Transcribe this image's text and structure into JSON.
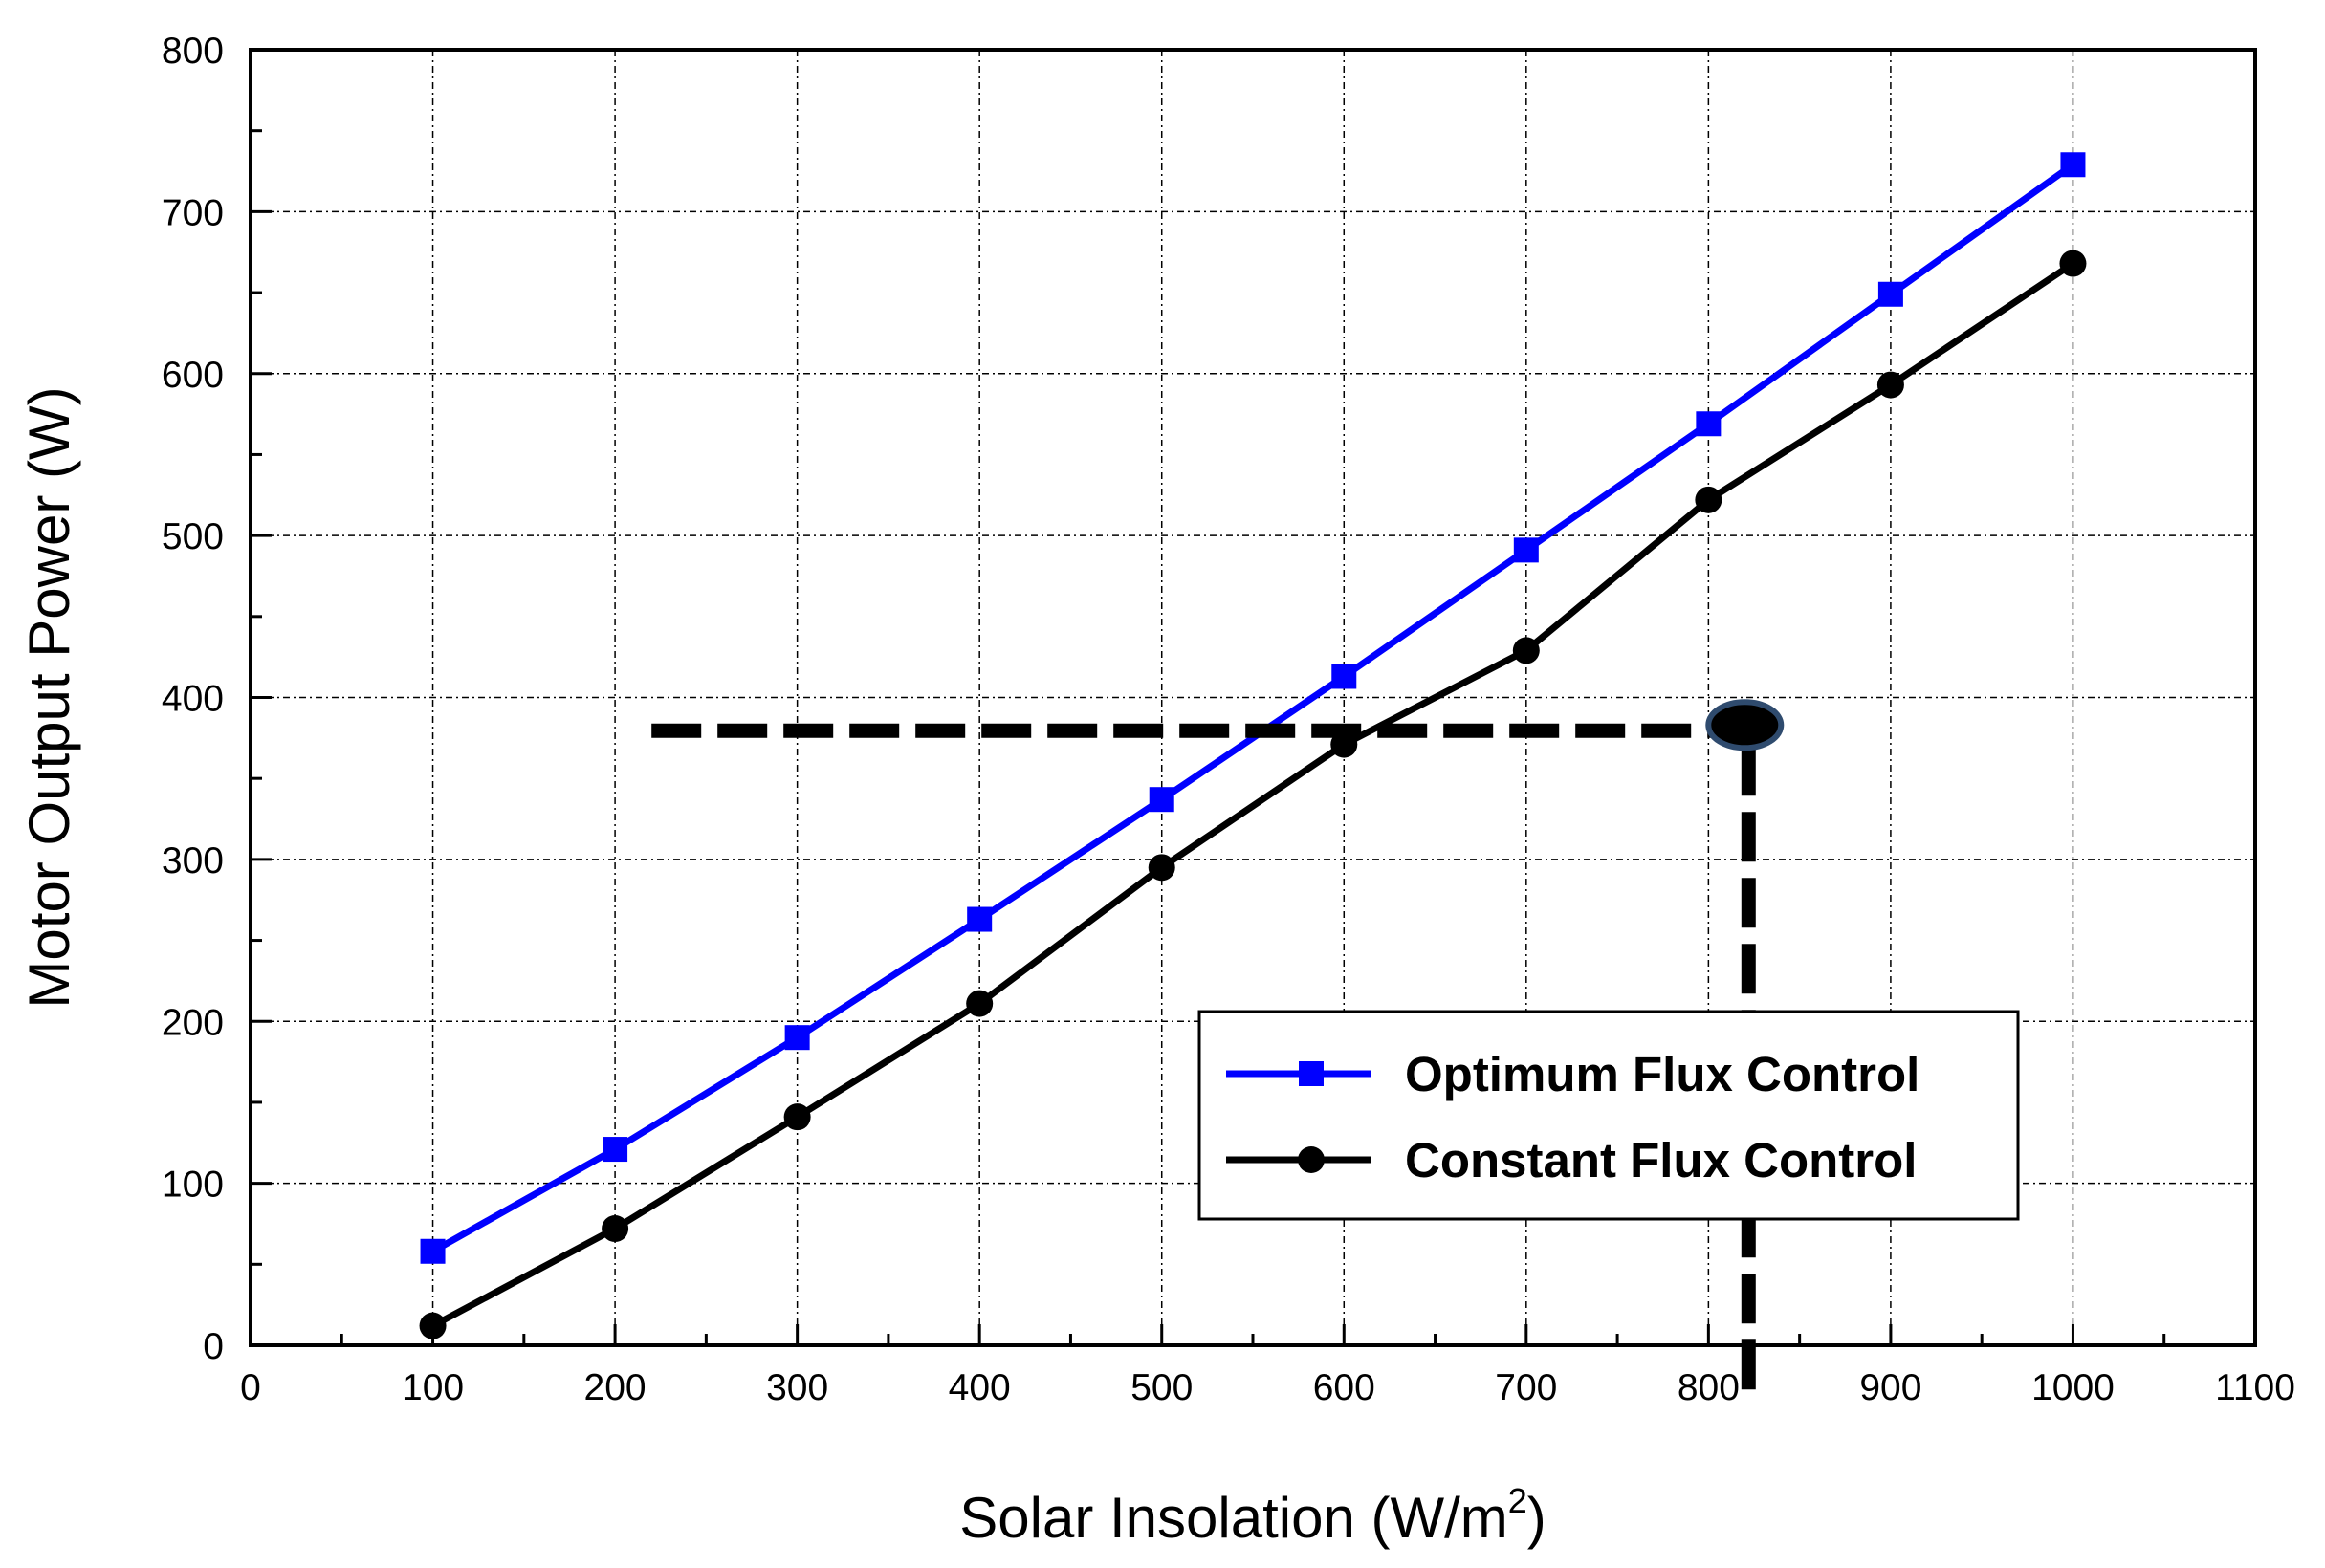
{
  "chart_data": {
    "type": "line",
    "title": "",
    "xlabel": "Solar Insolation (W/m",
    "xlabel_superscript": "2",
    "xlabel_suffix": ")",
    "ylabel": "Motor Output Power (W)",
    "xlim": [
      0,
      1100
    ],
    "ylim": [
      0,
      800
    ],
    "xticks": [
      0,
      100,
      200,
      300,
      400,
      500,
      600,
      700,
      800,
      900,
      1000,
      1100
    ],
    "yticks": [
      0,
      100,
      200,
      300,
      400,
      500,
      600,
      700,
      800
    ],
    "xtick_labels": [
      "0",
      "100",
      "200",
      "300",
      "400",
      "500",
      "600",
      "700",
      "800",
      "900",
      "1000",
      "1100"
    ],
    "ytick_labels": [
      "0",
      "100",
      "200",
      "300",
      "400",
      "500",
      "600",
      "700",
      "800"
    ],
    "grid": true,
    "legend_position": "bottom-right",
    "x": [
      100,
      200,
      300,
      400,
      500,
      600,
      700,
      800,
      900,
      1000
    ],
    "series": [
      {
        "name": "Optimum Flux Control",
        "color": "#0000ff",
        "marker": "square",
        "values": [
          58,
          121,
          190,
          263,
          337,
          413,
          491,
          569,
          649,
          729
        ]
      },
      {
        "name": "Constant Flux Control",
        "color": "#000000",
        "marker": "circle",
        "values": [
          12,
          72,
          141,
          211,
          295,
          371,
          429,
          522,
          593,
          668
        ]
      }
    ],
    "annotation": {
      "type": "dashed-guide",
      "point": [
        822,
        383
      ],
      "horizontal_from_x": 220,
      "vertical_to_y": -30,
      "marker_fill": "#000000",
      "marker_stroke": "#2f4b6e"
    }
  }
}
